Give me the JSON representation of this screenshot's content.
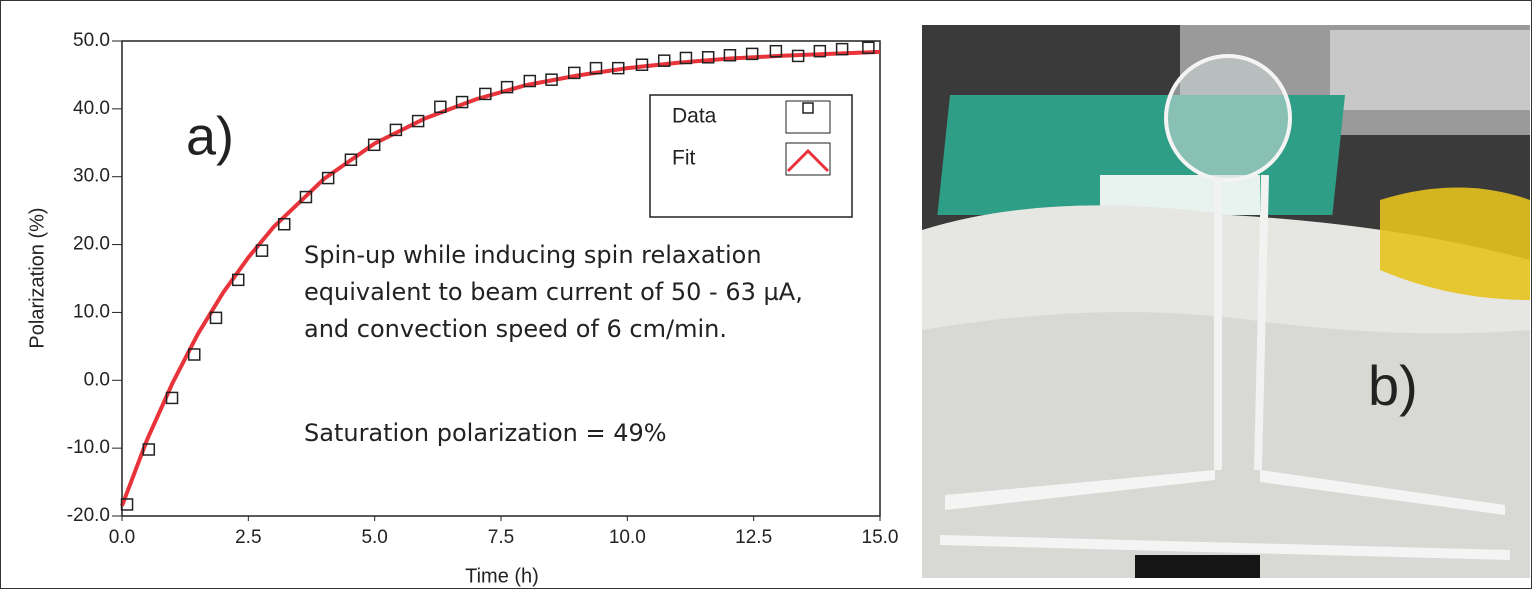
{
  "chart_data": {
    "type": "scatter",
    "x_label": "Time (h)",
    "y_label": "Polarization (%)",
    "xlim": [
      0,
      15
    ],
    "ylim": [
      -20,
      50
    ],
    "xticks": [
      {
        "value": 0,
        "label": "0.0"
      },
      2.5,
      {
        "value": 5,
        "label": "5.0"
      },
      7.5,
      {
        "value": 10,
        "label": "10.0"
      },
      12.5,
      {
        "value": 15,
        "label": "15.0"
      }
    ],
    "yticks": [
      {
        "value": -20,
        "label": "-20.0"
      },
      {
        "value": -10,
        "label": "-10.0"
      },
      {
        "value": 0,
        "label": "0.0"
      },
      {
        "value": 10,
        "label": "10.0"
      },
      {
        "value": 20,
        "label": "20.0"
      },
      {
        "value": 30,
        "label": "30.0"
      },
      {
        "value": 40,
        "label": "40.0"
      },
      {
        "value": 50,
        "label": "50.0"
      }
    ],
    "series": [
      {
        "name": "Data",
        "color": "#222222",
        "marker": "square",
        "x": [
          0.1,
          0.53,
          0.99,
          1.43,
          1.86,
          2.3,
          2.77,
          3.21,
          3.64,
          4.08,
          4.53,
          4.99,
          5.42,
          5.86,
          6.3,
          6.73,
          7.19,
          7.62,
          8.07,
          8.5,
          8.95,
          9.38,
          9.82,
          10.29,
          10.73,
          11.16,
          11.6,
          12.03,
          12.47,
          12.94,
          13.38,
          13.81,
          14.25,
          14.77
        ],
        "values": [
          -18.3,
          -10.2,
          -2.6,
          3.8,
          9.2,
          14.8,
          19.1,
          23.0,
          27.0,
          29.8,
          32.5,
          34.7,
          36.9,
          38.2,
          40.3,
          41.0,
          42.2,
          43.2,
          44.1,
          44.3,
          45.3,
          46.0,
          46.0,
          46.5,
          47.1,
          47.5,
          47.6,
          47.9,
          48.1,
          48.5,
          47.8,
          48.5,
          48.8,
          49.0
        ]
      },
      {
        "name": "Fit",
        "color": "#e8333a",
        "marker": "line",
        "x": [
          0,
          0.5,
          1,
          1.5,
          2,
          2.5,
          3,
          4,
          5,
          6,
          7,
          8,
          9,
          10,
          11,
          12,
          13,
          14,
          15
        ],
        "values": [
          -18.5,
          -8.7,
          -0.4,
          6.8,
          12.9,
          18.1,
          22.6,
          29.7,
          34.9,
          38.6,
          41.4,
          43.5,
          44.9,
          46.0,
          46.8,
          47.4,
          47.8,
          48.1,
          48.4
        ]
      }
    ],
    "annotations": [
      "a)",
      "Spin-up while inducing spin relaxation",
      "equivalent to beam current of 50 - 63 µA,",
      "and convection speed of 6 cm/min.",
      "Saturation polarization = 49%",
      "b)"
    ]
  }
}
